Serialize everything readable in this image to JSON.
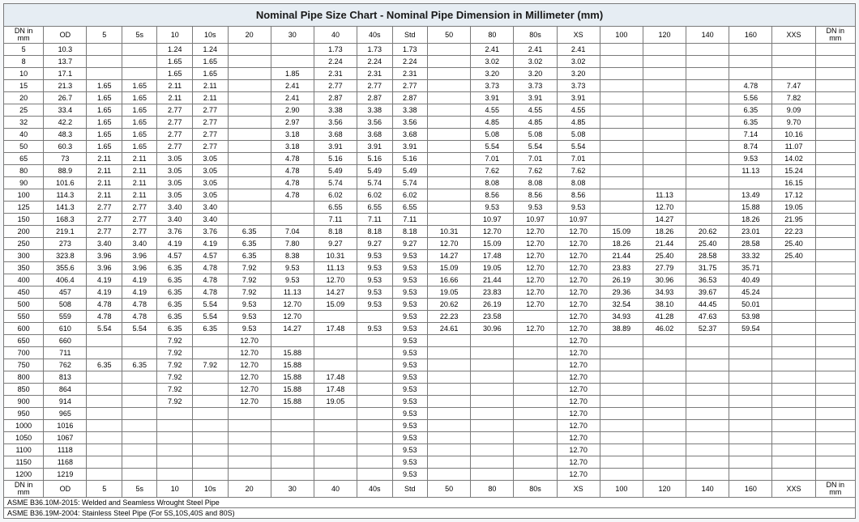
{
  "title": "Nominal Pipe Size Chart - Nominal Pipe Dimension in Millimeter (mm)",
  "header_dn_top": "DN in",
  "header_dn_bottom": "mm",
  "columns": [
    "OD",
    "5",
    "5s",
    "10",
    "10s",
    "20",
    "30",
    "40",
    "40s",
    "Std",
    "50",
    "80",
    "80s",
    "XS",
    "100",
    "120",
    "140",
    "160",
    "XXS"
  ],
  "rows": [
    {
      "dn": "5",
      "c": [
        "10.3",
        "",
        "",
        "1.24",
        "1.24",
        "",
        "",
        "1.73",
        "1.73",
        "1.73",
        "",
        "2.41",
        "2.41",
        "2.41",
        "",
        "",
        "",
        "",
        ""
      ]
    },
    {
      "dn": "8",
      "c": [
        "13.7",
        "",
        "",
        "1.65",
        "1.65",
        "",
        "",
        "2.24",
        "2.24",
        "2.24",
        "",
        "3.02",
        "3.02",
        "3.02",
        "",
        "",
        "",
        "",
        ""
      ]
    },
    {
      "dn": "10",
      "c": [
        "17.1",
        "",
        "",
        "1.65",
        "1.65",
        "",
        "1.85",
        "2.31",
        "2.31",
        "2.31",
        "",
        "3.20",
        "3.20",
        "3.20",
        "",
        "",
        "",
        "",
        ""
      ]
    },
    {
      "dn": "15",
      "c": [
        "21.3",
        "1.65",
        "1.65",
        "2.11",
        "2.11",
        "",
        "2.41",
        "2.77",
        "2.77",
        "2.77",
        "",
        "3.73",
        "3.73",
        "3.73",
        "",
        "",
        "",
        "4.78",
        "7.47"
      ]
    },
    {
      "dn": "20",
      "c": [
        "26.7",
        "1.65",
        "1.65",
        "2.11",
        "2.11",
        "",
        "2.41",
        "2.87",
        "2.87",
        "2.87",
        "",
        "3.91",
        "3.91",
        "3.91",
        "",
        "",
        "",
        "5.56",
        "7.82"
      ]
    },
    {
      "dn": "25",
      "c": [
        "33.4",
        "1.65",
        "1.65",
        "2.77",
        "2.77",
        "",
        "2.90",
        "3.38",
        "3.38",
        "3.38",
        "",
        "4.55",
        "4.55",
        "4.55",
        "",
        "",
        "",
        "6.35",
        "9.09"
      ]
    },
    {
      "dn": "32",
      "c": [
        "42.2",
        "1.65",
        "1.65",
        "2.77",
        "2.77",
        "",
        "2.97",
        "3.56",
        "3.56",
        "3.56",
        "",
        "4.85",
        "4.85",
        "4.85",
        "",
        "",
        "",
        "6.35",
        "9.70"
      ]
    },
    {
      "dn": "40",
      "c": [
        "48.3",
        "1.65",
        "1.65",
        "2.77",
        "2.77",
        "",
        "3.18",
        "3.68",
        "3.68",
        "3.68",
        "",
        "5.08",
        "5.08",
        "5.08",
        "",
        "",
        "",
        "7.14",
        "10.16"
      ]
    },
    {
      "dn": "50",
      "c": [
        "60.3",
        "1.65",
        "1.65",
        "2.77",
        "2.77",
        "",
        "3.18",
        "3.91",
        "3.91",
        "3.91",
        "",
        "5.54",
        "5.54",
        "5.54",
        "",
        "",
        "",
        "8.74",
        "11.07"
      ]
    },
    {
      "dn": "65",
      "c": [
        "73",
        "2.11",
        "2.11",
        "3.05",
        "3.05",
        "",
        "4.78",
        "5.16",
        "5.16",
        "5.16",
        "",
        "7.01",
        "7.01",
        "7.01",
        "",
        "",
        "",
        "9.53",
        "14.02"
      ]
    },
    {
      "dn": "80",
      "c": [
        "88.9",
        "2.11",
        "2.11",
        "3.05",
        "3.05",
        "",
        "4.78",
        "5.49",
        "5.49",
        "5.49",
        "",
        "7.62",
        "7.62",
        "7.62",
        "",
        "",
        "",
        "11.13",
        "15.24"
      ]
    },
    {
      "dn": "90",
      "c": [
        "101.6",
        "2.11",
        "2.11",
        "3.05",
        "3.05",
        "",
        "4.78",
        "5.74",
        "5.74",
        "5.74",
        "",
        "8.08",
        "8.08",
        "8.08",
        "",
        "",
        "",
        "",
        "16.15"
      ]
    },
    {
      "dn": "100",
      "c": [
        "114.3",
        "2.11",
        "2.11",
        "3.05",
        "3.05",
        "",
        "4.78",
        "6.02",
        "6.02",
        "6.02",
        "",
        "8.56",
        "8.56",
        "8.56",
        "",
        "11.13",
        "",
        "13.49",
        "17.12"
      ]
    },
    {
      "dn": "125",
      "c": [
        "141.3",
        "2.77",
        "2.77",
        "3.40",
        "3.40",
        "",
        "",
        "6.55",
        "6.55",
        "6.55",
        "",
        "9.53",
        "9.53",
        "9.53",
        "",
        "12.70",
        "",
        "15.88",
        "19.05"
      ]
    },
    {
      "dn": "150",
      "c": [
        "168.3",
        "2.77",
        "2.77",
        "3.40",
        "3.40",
        "",
        "",
        "7.11",
        "7.11",
        "7.11",
        "",
        "10.97",
        "10.97",
        "10.97",
        "",
        "14.27",
        "",
        "18.26",
        "21.95"
      ]
    },
    {
      "dn": "200",
      "c": [
        "219.1",
        "2.77",
        "2.77",
        "3.76",
        "3.76",
        "6.35",
        "7.04",
        "8.18",
        "8.18",
        "8.18",
        "10.31",
        "12.70",
        "12.70",
        "12.70",
        "15.09",
        "18.26",
        "20.62",
        "23.01",
        "22.23"
      ]
    },
    {
      "dn": "250",
      "c": [
        "273",
        "3.40",
        "3.40",
        "4.19",
        "4.19",
        "6.35",
        "7.80",
        "9.27",
        "9.27",
        "9.27",
        "12.70",
        "15.09",
        "12.70",
        "12.70",
        "18.26",
        "21.44",
        "25.40",
        "28.58",
        "25.40"
      ]
    },
    {
      "dn": "300",
      "c": [
        "323.8",
        "3.96",
        "3.96",
        "4.57",
        "4.57",
        "6.35",
        "8.38",
        "10.31",
        "9.53",
        "9.53",
        "14.27",
        "17.48",
        "12.70",
        "12.70",
        "21.44",
        "25.40",
        "28.58",
        "33.32",
        "25.40"
      ]
    },
    {
      "dn": "350",
      "c": [
        "355.6",
        "3.96",
        "3.96",
        "6.35",
        "4.78",
        "7.92",
        "9.53",
        "11.13",
        "9.53",
        "9.53",
        "15.09",
        "19.05",
        "12.70",
        "12.70",
        "23.83",
        "27.79",
        "31.75",
        "35.71",
        ""
      ]
    },
    {
      "dn": "400",
      "c": [
        "406.4",
        "4.19",
        "4.19",
        "6.35",
        "4.78",
        "7.92",
        "9.53",
        "12.70",
        "9.53",
        "9.53",
        "16.66",
        "21.44",
        "12.70",
        "12.70",
        "26.19",
        "30.96",
        "36.53",
        "40.49",
        ""
      ]
    },
    {
      "dn": "450",
      "c": [
        "457",
        "4.19",
        "4.19",
        "6.35",
        "4.78",
        "7.92",
        "11.13",
        "14.27",
        "9.53",
        "9.53",
        "19.05",
        "23.83",
        "12.70",
        "12.70",
        "29.36",
        "34.93",
        "39.67",
        "45.24",
        ""
      ]
    },
    {
      "dn": "500",
      "c": [
        "508",
        "4.78",
        "4.78",
        "6.35",
        "5.54",
        "9.53",
        "12.70",
        "15.09",
        "9.53",
        "9.53",
        "20.62",
        "26.19",
        "12.70",
        "12.70",
        "32.54",
        "38.10",
        "44.45",
        "50.01",
        ""
      ]
    },
    {
      "dn": "550",
      "c": [
        "559",
        "4.78",
        "4.78",
        "6.35",
        "5.54",
        "9.53",
        "12.70",
        "",
        "",
        "9.53",
        "22.23",
        "23.58",
        "",
        "12.70",
        "34.93",
        "41.28",
        "47.63",
        "53.98",
        ""
      ]
    },
    {
      "dn": "600",
      "c": [
        "610",
        "5.54",
        "5.54",
        "6.35",
        "6.35",
        "9.53",
        "14.27",
        "17.48",
        "9.53",
        "9.53",
        "24.61",
        "30.96",
        "12.70",
        "12.70",
        "38.89",
        "46.02",
        "52.37",
        "59.54",
        ""
      ]
    },
    {
      "dn": "650",
      "c": [
        "660",
        "",
        "",
        "7.92",
        "",
        "12.70",
        "",
        "",
        "",
        "9.53",
        "",
        "",
        "",
        "12.70",
        "",
        "",
        "",
        "",
        ""
      ]
    },
    {
      "dn": "700",
      "c": [
        "711",
        "",
        "",
        "7.92",
        "",
        "12.70",
        "15.88",
        "",
        "",
        "9.53",
        "",
        "",
        "",
        "12.70",
        "",
        "",
        "",
        "",
        ""
      ]
    },
    {
      "dn": "750",
      "c": [
        "762",
        "6.35",
        "6.35",
        "7.92",
        "7.92",
        "12.70",
        "15.88",
        "",
        "",
        "9.53",
        "",
        "",
        "",
        "12.70",
        "",
        "",
        "",
        "",
        ""
      ]
    },
    {
      "dn": "800",
      "c": [
        "813",
        "",
        "",
        "7.92",
        "",
        "12.70",
        "15.88",
        "17.48",
        "",
        "9.53",
        "",
        "",
        "",
        "12.70",
        "",
        "",
        "",
        "",
        ""
      ]
    },
    {
      "dn": "850",
      "c": [
        "864",
        "",
        "",
        "7.92",
        "",
        "12.70",
        "15.88",
        "17.48",
        "",
        "9.53",
        "",
        "",
        "",
        "12.70",
        "",
        "",
        "",
        "",
        ""
      ]
    },
    {
      "dn": "900",
      "c": [
        "914",
        "",
        "",
        "7.92",
        "",
        "12.70",
        "15.88",
        "19.05",
        "",
        "9.53",
        "",
        "",
        "",
        "12.70",
        "",
        "",
        "",
        "",
        ""
      ]
    },
    {
      "dn": "950",
      "c": [
        "965",
        "",
        "",
        "",
        "",
        "",
        "",
        "",
        "",
        "9.53",
        "",
        "",
        "",
        "12.70",
        "",
        "",
        "",
        "",
        ""
      ]
    },
    {
      "dn": "1000",
      "c": [
        "1016",
        "",
        "",
        "",
        "",
        "",
        "",
        "",
        "",
        "9.53",
        "",
        "",
        "",
        "12.70",
        "",
        "",
        "",
        "",
        ""
      ]
    },
    {
      "dn": "1050",
      "c": [
        "1067",
        "",
        "",
        "",
        "",
        "",
        "",
        "",
        "",
        "9.53",
        "",
        "",
        "",
        "12.70",
        "",
        "",
        "",
        "",
        ""
      ]
    },
    {
      "dn": "1100",
      "c": [
        "1118",
        "",
        "",
        "",
        "",
        "",
        "",
        "",
        "",
        "9.53",
        "",
        "",
        "",
        "12.70",
        "",
        "",
        "",
        "",
        ""
      ]
    },
    {
      "dn": "1150",
      "c": [
        "1168",
        "",
        "",
        "",
        "",
        "",
        "",
        "",
        "",
        "9.53",
        "",
        "",
        "",
        "12.70",
        "",
        "",
        "",
        "",
        ""
      ]
    },
    {
      "dn": "1200",
      "c": [
        "1219",
        "",
        "",
        "",
        "",
        "",
        "",
        "",
        "",
        "9.53",
        "",
        "",
        "",
        "12.70",
        "",
        "",
        "",
        "",
        ""
      ]
    }
  ],
  "footnote1": "ASME B36.10M-2015: Welded and Seamless Wrought Steel Pipe",
  "footnote2": "ASME B36.19M-2004: Stainless Steel Pipe (For 5S,10S,40S and 80S)"
}
